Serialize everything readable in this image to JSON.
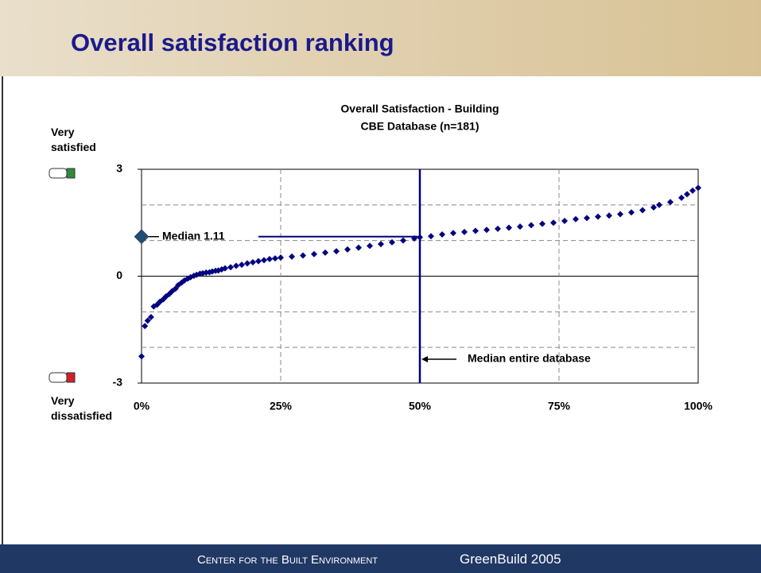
{
  "header": {
    "title": "Overall satisfaction ranking"
  },
  "footer": {
    "organization": "Center for the Built Environment",
    "event": "GreenBuild 2005"
  },
  "chart_data": {
    "type": "scatter",
    "title": "Overall Satisfaction - Building",
    "subtitle": "CBE Database (n=181)",
    "y_top_label": "Very satisfied",
    "y_bottom_label": "Very dissatisfied",
    "color": "#000080",
    "x": [
      0,
      0.6,
      1.1,
      1.7,
      2.2,
      2.8,
      3.3,
      3.9,
      4.4,
      5,
      5.5,
      6.1,
      6.6,
      7.2,
      7.7,
      8.3,
      8.8,
      9.4,
      9.9,
      10.5,
      11,
      11.6,
      12.2,
      12.7,
      13.3,
      13.8,
      14.4,
      15,
      16,
      17,
      18,
      19,
      20,
      21,
      22,
      23,
      24,
      25,
      27,
      29,
      31,
      33,
      35,
      37,
      39,
      41,
      43,
      45,
      47,
      49,
      50,
      52,
      54,
      56,
      58,
      60,
      62,
      64,
      66,
      68,
      70,
      72,
      74,
      76,
      78,
      80,
      82,
      84,
      86,
      88,
      90,
      92,
      93,
      95,
      97,
      98,
      99,
      100
    ],
    "values": [
      -2.25,
      -1.4,
      -1.25,
      -1.15,
      -0.85,
      -0.8,
      -0.72,
      -0.65,
      -0.57,
      -0.5,
      -0.42,
      -0.35,
      -0.25,
      -0.18,
      -0.12,
      -0.07,
      -0.03,
      0.01,
      0.04,
      0.07,
      0.08,
      0.1,
      0.11,
      0.13,
      0.15,
      0.16,
      0.19,
      0.22,
      0.25,
      0.29,
      0.32,
      0.36,
      0.39,
      0.42,
      0.45,
      0.48,
      0.5,
      0.52,
      0.55,
      0.58,
      0.62,
      0.66,
      0.7,
      0.75,
      0.8,
      0.85,
      0.9,
      0.95,
      1.0,
      1.06,
      1.09,
      1.12,
      1.17,
      1.21,
      1.24,
      1.27,
      1.3,
      1.33,
      1.36,
      1.39,
      1.43,
      1.47,
      1.5,
      1.55,
      1.6,
      1.63,
      1.67,
      1.7,
      1.74,
      1.79,
      1.85,
      1.93,
      2.0,
      2.08,
      2.2,
      2.3,
      2.4,
      2.48
    ],
    "xlim": [
      0,
      100
    ],
    "ylim": [
      -3,
      3
    ],
    "xticks": [
      {
        "value": 0,
        "label": "0%"
      },
      {
        "value": 25,
        "label": "25%"
      },
      {
        "value": 50,
        "label": "50%"
      },
      {
        "value": 75,
        "label": "75%"
      },
      {
        "value": 100,
        "label": "100%"
      }
    ],
    "yticks": [
      -3,
      0,
      3
    ],
    "ygrid_lines": [
      -2,
      -1,
      1,
      2
    ],
    "grid": true,
    "median_marker": {
      "label": "Median 1.11",
      "x": 0,
      "y": 1.11,
      "color": "#1f4e79"
    },
    "median_line": {
      "label": "Median entire database",
      "x": 50,
      "color": "#000080"
    }
  }
}
